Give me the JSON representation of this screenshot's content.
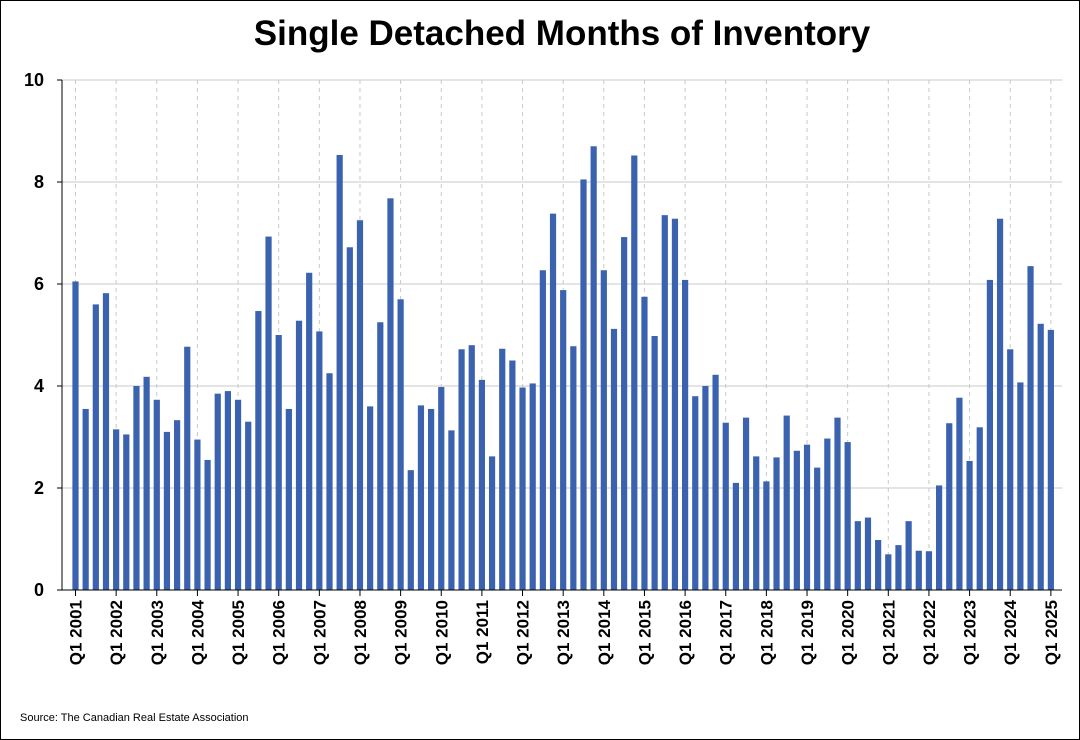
{
  "chart_data": {
    "type": "bar",
    "title": "Single Detached Months of Inventory",
    "xlabel": "",
    "ylabel": "",
    "ylim": [
      0,
      10
    ],
    "yticks": [
      0,
      2,
      4,
      6,
      8,
      10
    ],
    "grid": "vertical dashed at year starts, horizontal solid at y ticks",
    "bar_color": "#3a62ae",
    "year_labels": [
      "Q1 2001",
      "Q1 2002",
      "Q1 2003",
      "Q1 2004",
      "Q1 2005",
      "Q1 2006",
      "Q1 2007",
      "Q1 2008",
      "Q1 2009",
      "Q1 2010",
      "Q1 2011",
      "Q1 2012",
      "Q1 2013",
      "Q1 2014",
      "Q1 2015",
      "Q1 2016",
      "Q1 2017",
      "Q1 2018",
      "Q1 2019",
      "Q1 2020",
      "Q1 2021",
      "Q1 2022",
      "Q1 2023",
      "Q1 2024",
      "Q1 2025"
    ],
    "values": [
      6.05,
      3.55,
      5.6,
      5.82,
      3.15,
      3.05,
      4.0,
      4.18,
      3.73,
      3.1,
      3.33,
      4.77,
      2.95,
      2.55,
      3.85,
      3.9,
      3.73,
      3.3,
      5.47,
      6.93,
      5.0,
      3.55,
      5.28,
      6.22,
      5.07,
      4.25,
      8.53,
      6.72,
      7.25,
      3.6,
      5.25,
      7.68,
      5.7,
      2.35,
      3.62,
      3.55,
      3.98,
      3.13,
      4.72,
      4.8,
      4.12,
      2.62,
      4.73,
      4.5,
      3.97,
      4.05,
      6.27,
      7.38,
      5.88,
      4.78,
      8.05,
      8.7,
      6.27,
      5.12,
      6.92,
      8.52,
      5.75,
      4.98,
      7.35,
      7.28,
      6.08,
      3.8,
      4.0,
      4.22,
      3.28,
      2.1,
      3.38,
      2.62,
      2.13,
      2.6,
      3.42,
      2.73,
      2.85,
      2.4,
      2.97,
      3.38,
      2.9,
      1.35,
      1.42,
      0.98,
      0.7,
      0.88,
      1.35,
      0.77,
      0.76,
      2.05,
      3.27,
      3.77,
      2.53,
      3.19,
      6.08,
      7.28,
      4.72,
      4.07,
      6.35,
      5.22,
      5.1
    ]
  },
  "source": "Source: The Canadian Real Estate Association"
}
